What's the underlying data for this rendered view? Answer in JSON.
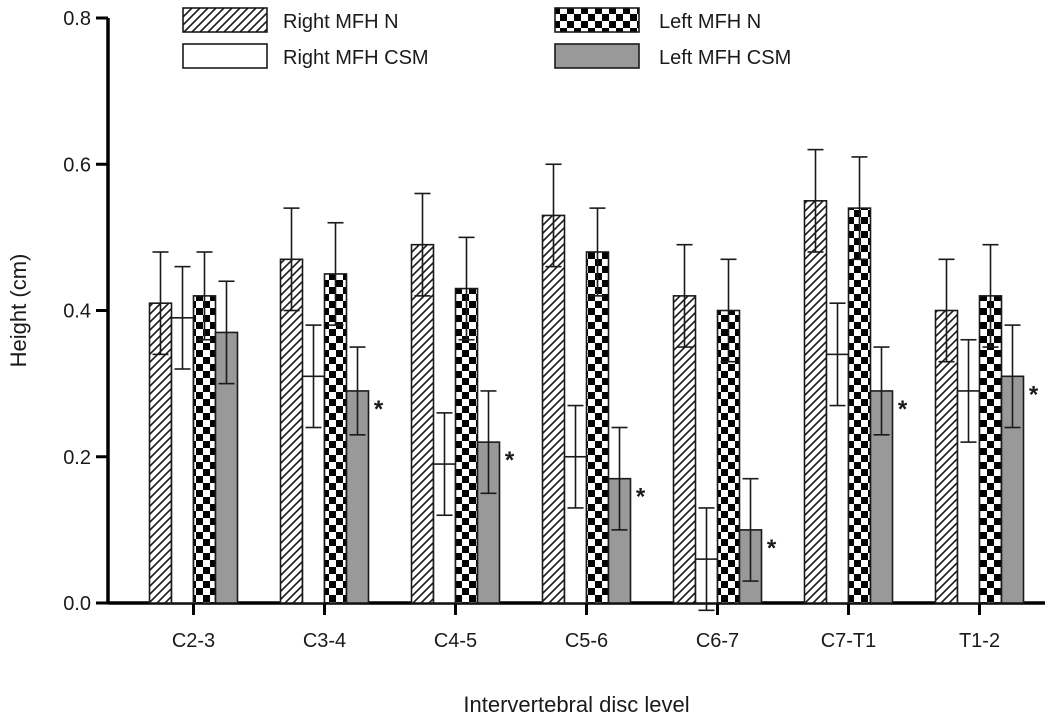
{
  "chart_data": {
    "type": "bar",
    "xlabel": "Intervertebral disc level",
    "ylabel": "Height (cm)",
    "ylim": [
      0,
      0.8
    ],
    "yticks": [
      "0.0",
      "0.2",
      "0.4",
      "0.6",
      "0.8"
    ],
    "ytick_values": [
      0,
      0.2,
      0.4,
      0.6,
      0.8
    ],
    "categories": [
      "C2-3",
      "C3-4",
      "C4-5",
      "C5-6",
      "C6-7",
      "C7-T1",
      "T1-2"
    ],
    "legend_position": "top",
    "grid": false,
    "significance_marker": "*",
    "series": [
      {
        "name": "Right MFH N",
        "pattern": "diagonal-hatch",
        "color": "#ffffff",
        "values": [
          0.41,
          0.47,
          0.49,
          0.53,
          0.42,
          0.55,
          0.4
        ],
        "errors": [
          0.07,
          0.07,
          0.07,
          0.07,
          0.07,
          0.07,
          0.07
        ],
        "significant": [
          false,
          false,
          false,
          false,
          false,
          false,
          false
        ]
      },
      {
        "name": "Right MFH CSM",
        "pattern": "none",
        "color": "#ffffff",
        "values": [
          0.39,
          0.31,
          0.19,
          0.2,
          0.06,
          0.34,
          0.29
        ],
        "errors": [
          0.07,
          0.07,
          0.07,
          0.07,
          0.07,
          0.07,
          0.07
        ],
        "significant": [
          false,
          true,
          true,
          true,
          true,
          true,
          false
        ]
      },
      {
        "name": "Left MFH N",
        "pattern": "checkerboard",
        "color": "#000000",
        "values": [
          0.42,
          0.45,
          0.43,
          0.48,
          0.4,
          0.54,
          0.42
        ],
        "errors": [
          0.06,
          0.07,
          0.07,
          0.06,
          0.07,
          0.07,
          0.07
        ],
        "significant": [
          false,
          false,
          false,
          false,
          false,
          false,
          false
        ]
      },
      {
        "name": "Left MFH CSM",
        "pattern": "solid",
        "color": "#999999",
        "values": [
          0.37,
          0.29,
          0.22,
          0.17,
          0.1,
          0.29,
          0.31
        ],
        "errors": [
          0.07,
          0.06,
          0.07,
          0.07,
          0.07,
          0.06,
          0.07
        ],
        "significant": [
          false,
          true,
          true,
          true,
          true,
          true,
          true
        ]
      }
    ]
  }
}
